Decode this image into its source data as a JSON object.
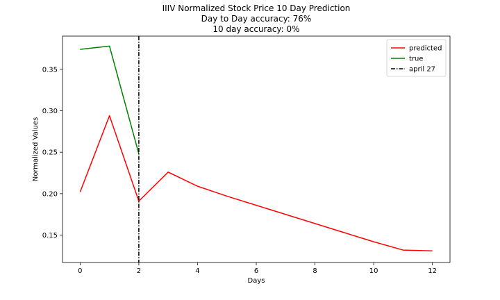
{
  "chart_data": {
    "type": "line",
    "title_lines": [
      "IIIV Normalized Stock Price 10 Day Prediction",
      "Day to Day accuracy: 76%",
      "10 day accuracy: 0%"
    ],
    "xlabel": "Days",
    "ylabel": "Normalized Values",
    "xlim": [
      -0.6,
      12.6
    ],
    "ylim": [
      0.117,
      0.39
    ],
    "xticks": [
      0,
      2,
      4,
      6,
      8,
      10,
      12
    ],
    "xtick_labels": [
      "0",
      "2",
      "4",
      "6",
      "8",
      "10",
      "12"
    ],
    "yticks": [
      0.15,
      0.2,
      0.25,
      0.3,
      0.35
    ],
    "ytick_labels": [
      "0.15",
      "0.20",
      "0.25",
      "0.30",
      "0.35"
    ],
    "grid": false,
    "legend_position": "top-right",
    "series": [
      {
        "name": "predicted",
        "color": "#ff0000",
        "x": [
          0,
          1,
          2,
          3,
          4,
          5,
          6,
          7,
          8,
          9,
          10,
          11,
          12
        ],
        "y": [
          0.202,
          0.294,
          0.191,
          0.226,
          0.209,
          0.197,
          0.186,
          0.175,
          0.164,
          0.153,
          0.142,
          0.132,
          0.131
        ]
      },
      {
        "name": "true",
        "color": "#008000",
        "x": [
          0,
          1,
          2
        ],
        "y": [
          0.374,
          0.378,
          0.248
        ]
      }
    ],
    "vlines": [
      {
        "name": "april 27",
        "x": 2,
        "color": "#000000",
        "style": "dashdot"
      }
    ]
  }
}
